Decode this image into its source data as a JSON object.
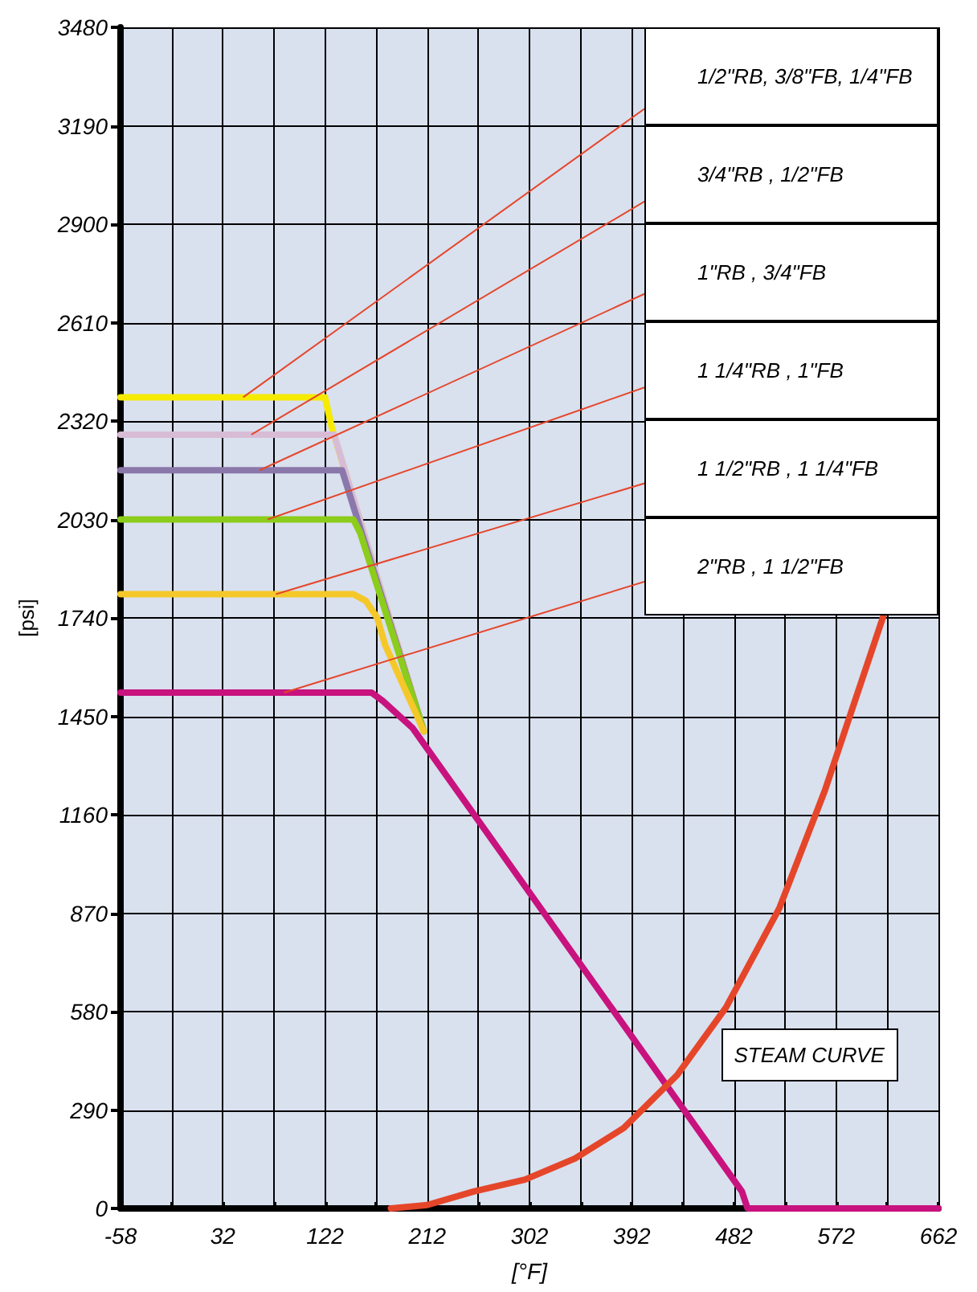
{
  "chart_data": {
    "type": "line",
    "xlabel": "[°F]",
    "ylabel": "[psi]",
    "xlim": [
      -58,
      662
    ],
    "xticks": [
      -58,
      32,
      122,
      212,
      302,
      392,
      482,
      572,
      662
    ],
    "ylim": [
      0,
      3480
    ],
    "yticks": [
      0,
      290,
      580,
      870,
      1160,
      1450,
      1740,
      2030,
      2320,
      2610,
      2900,
      3190,
      3480
    ],
    "grid": true,
    "legend": "top right",
    "marker": "none",
    "line_style": "solid",
    "series": [
      {
        "name": "1/2\"RB, 3/8\"FB, 1/4\"FB",
        "color": "#f5ea00",
        "x": [
          -58,
          122,
          128,
          209
        ],
        "values": [
          2390,
          2390,
          2300,
          1406
        ]
      },
      {
        "name": "3/4\"RB , 1/2\"FB",
        "color": "#d8bcd6",
        "x": [
          -58,
          130,
          209
        ],
        "values": [
          2280,
          2280,
          1406
        ]
      },
      {
        "name": "1\"RB , 3/4\"FB",
        "color": "#8a78ab",
        "x": [
          -58,
          137,
          209
        ],
        "values": [
          2175,
          2175,
          1406
        ]
      },
      {
        "name": "1 1/4\"RB , 1\"FB",
        "color": "#8ccc1a",
        "x": [
          -58,
          147,
          153,
          209
        ],
        "values": [
          2030,
          2030,
          1990,
          1406
        ]
      },
      {
        "name": "1 1/2\"RB , 1 1/4\"FB",
        "color": "#f5c82a",
        "x": [
          -58,
          147,
          158,
          168,
          175,
          209
        ],
        "values": [
          1810,
          1810,
          1790,
          1740,
          1660,
          1406
        ]
      },
      {
        "name": "2\"RB , 1 1/2\"FB",
        "color": "#c8127e",
        "x": [
          -58,
          163,
          173,
          199,
          489,
          494,
          662
        ],
        "values": [
          1520,
          1520,
          1495,
          1416,
          50,
          0,
          0
        ]
      },
      {
        "name": "STEAM CURVE",
        "color": "#e5462a",
        "x": [
          180,
          212,
          253,
          298,
          342,
          385,
          432,
          475,
          522,
          562,
          614
        ],
        "values": [
          0,
          10,
          50,
          85,
          147,
          237,
          393,
          592,
          885,
          1231,
          1750
        ]
      }
    ]
  }
}
